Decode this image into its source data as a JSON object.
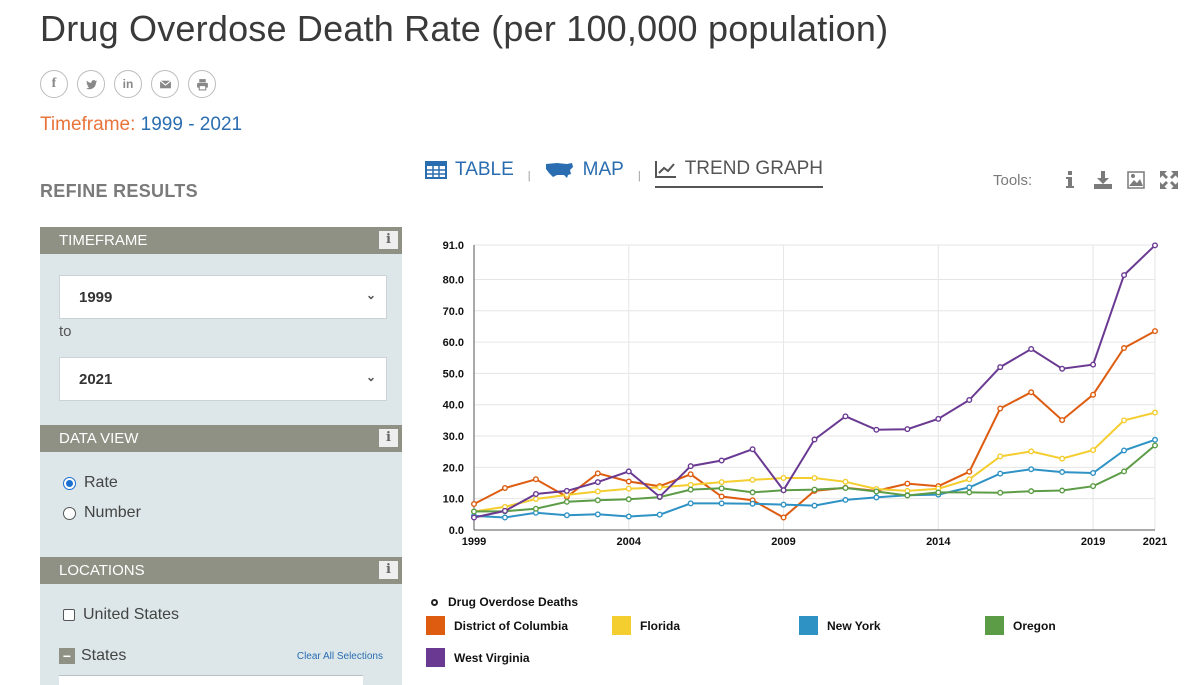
{
  "page": {
    "title": "Drug Overdose Death Rate (per 100,000 population)",
    "timeframe_label": "Timeframe:",
    "timeframe_value": "1999 - 2021"
  },
  "share": [
    {
      "name": "facebook-icon",
      "glyph": "f"
    },
    {
      "name": "twitter-icon",
      "glyph": "t"
    },
    {
      "name": "linkedin-icon",
      "glyph": "in"
    },
    {
      "name": "email-icon",
      "glyph": "mail"
    },
    {
      "name": "print-icon",
      "glyph": "print"
    }
  ],
  "sidebar": {
    "refine_title": "REFINE RESULTS",
    "timeframe": {
      "header": "TIMEFRAME",
      "from": "1999",
      "to_label": "to",
      "to": "2021"
    },
    "data_view": {
      "header": "DATA VIEW",
      "options": [
        "Rate",
        "Number"
      ],
      "selected": "Rate"
    },
    "locations": {
      "header": "LOCATIONS",
      "united_states": "United States",
      "states_label": "States",
      "clear_all": "Clear All Selections"
    },
    "info_glyph": "i"
  },
  "tabs": [
    {
      "label": "TABLE",
      "icon": "table-icon"
    },
    {
      "label": "MAP",
      "icon": "us-map-icon"
    },
    {
      "label": "TREND GRAPH",
      "icon": "trend-graph-icon"
    }
  ],
  "tools": {
    "label": "Tools:",
    "icons": [
      "info-icon",
      "download-icon",
      "image-icon",
      "fullscreen-icon"
    ]
  },
  "chart_data": {
    "type": "line",
    "title": "Drug Overdose Death Rate (per 100,000 population)",
    "x": [
      1999,
      2000,
      2001,
      2002,
      2003,
      2004,
      2005,
      2006,
      2007,
      2008,
      2009,
      2010,
      2011,
      2012,
      2013,
      2014,
      2015,
      2016,
      2017,
      2018,
      2019,
      2020,
      2021
    ],
    "x_tick_labels": [
      "1999",
      "2004",
      "2009",
      "2014",
      "2019",
      "2021"
    ],
    "x_ticks": [
      1999,
      2004,
      2009,
      2014,
      2019,
      2021
    ],
    "y_ticks": [
      0,
      10,
      20,
      30,
      40,
      50,
      60,
      70,
      80,
      91
    ],
    "y_tick_labels": [
      "0.0",
      "10.0",
      "20.0",
      "30.0",
      "40.0",
      "50.0",
      "60.0",
      "70.0",
      "80.0",
      "91.0"
    ],
    "ylim": [
      0,
      91
    ],
    "legend_title": "Drug Overdose Deaths",
    "series": [
      {
        "name": "District of Columbia",
        "color": "#de5c10",
        "values": [
          8.3,
          13.4,
          16.2,
          10.6,
          18.1,
          15.5,
          14.0,
          17.8,
          10.7,
          9.5,
          4.0,
          12.5,
          13.5,
          12.5,
          14.8,
          14.0,
          18.6,
          38.8,
          44.0,
          35.1,
          43.2,
          58.1,
          63.5
        ]
      },
      {
        "name": "Florida",
        "color": "#f4cd2f",
        "values": [
          5.9,
          7.4,
          9.9,
          11.2,
          12.3,
          13.2,
          13.6,
          14.4,
          15.3,
          16.0,
          16.6,
          16.6,
          15.4,
          13.1,
          12.5,
          13.2,
          16.2,
          23.5,
          25.1,
          22.8,
          25.5,
          35.0,
          37.5
        ]
      },
      {
        "name": "New York",
        "color": "#2e92c4",
        "values": [
          4.5,
          4.0,
          5.5,
          4.7,
          5.0,
          4.3,
          4.9,
          8.5,
          8.5,
          8.4,
          8.1,
          7.8,
          9.6,
          10.4,
          11.1,
          11.3,
          13.6,
          18.0,
          19.4,
          18.5,
          18.2,
          25.4,
          28.8
        ]
      },
      {
        "name": "Oregon",
        "color": "#5c9c47",
        "values": [
          5.9,
          6.0,
          6.8,
          9.0,
          9.5,
          9.8,
          10.5,
          12.9,
          13.3,
          12.0,
          12.7,
          12.9,
          13.4,
          12.3,
          11.0,
          12.0,
          12.0,
          11.9,
          12.4,
          12.6,
          14.0,
          18.7,
          27.0
        ]
      },
      {
        "name": "West Virginia",
        "color": "#6a3a92",
        "values": [
          4.0,
          6.1,
          11.5,
          12.5,
          15.3,
          18.7,
          10.6,
          20.4,
          22.2,
          25.8,
          12.7,
          28.9,
          36.3,
          32.0,
          32.2,
          35.5,
          41.5,
          52.0,
          57.8,
          51.5,
          52.8,
          81.4,
          90.9
        ]
      }
    ]
  }
}
